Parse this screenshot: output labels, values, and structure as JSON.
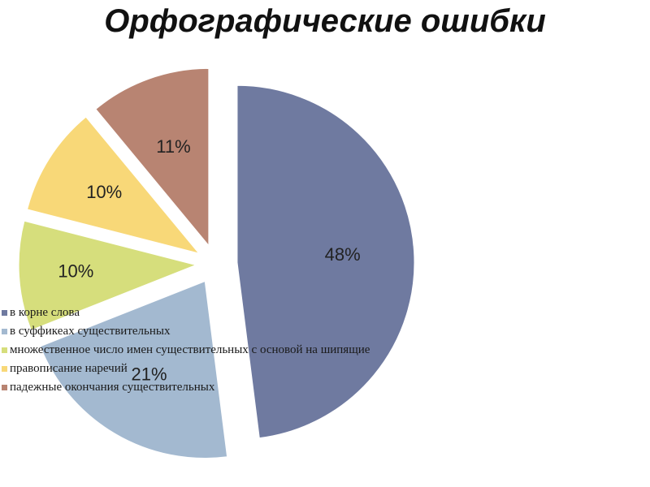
{
  "chart_data": {
    "type": "pie",
    "title": "Орфографические ошибки",
    "slices": [
      {
        "label": "в корне слова",
        "value": 48,
        "value_label": "48%",
        "color": "#6f7aa0"
      },
      {
        "label": "в суффикеах существительных",
        "value": 21,
        "value_label": "21%",
        "color": "#a3b9d0"
      },
      {
        "label": "множественное число имен существительных  с основой на шипящие",
        "value": 10,
        "value_label": "10%",
        "color": "#d6de7c"
      },
      {
        "label": "правописание наречий",
        "value": 10,
        "value_label": "10%",
        "color": "#f8d878"
      },
      {
        "label": "падежные окончания существительных",
        "value": 11,
        "value_label": "11%",
        "color": "#b88472"
      }
    ],
    "legend_position": "left",
    "exploded": true
  }
}
